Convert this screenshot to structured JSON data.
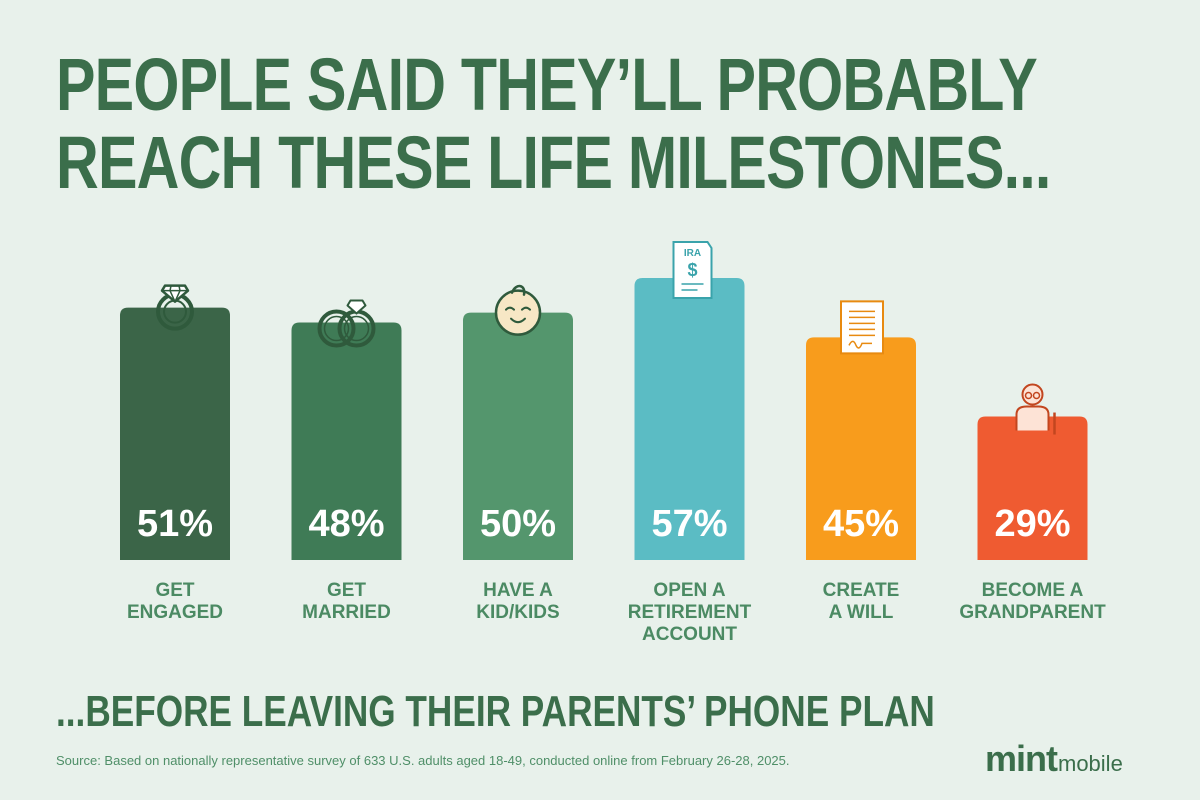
{
  "title": {
    "line1": "PEOPLE SAID THEY’LL PROBABLY",
    "line2": "REACH THESE LIFE MILESTONES..."
  },
  "footer_title": "...BEFORE LEAVING THEIR PARENTS’ PHONE PLAN",
  "source": "Source: Based on nationally representative survey of 633 U.S. adults aged 18-49, conducted online from February 26-28, 2025.",
  "logo": {
    "mint": "mint",
    "mobile": "mobile"
  },
  "chart_data": {
    "type": "bar",
    "categories": [
      [
        "GET",
        "ENGAGED"
      ],
      [
        "GET",
        "MARRIED"
      ],
      [
        "HAVE A",
        "KID/KIDS"
      ],
      [
        "OPEN A",
        "RETIREMENT",
        "ACCOUNT"
      ],
      [
        "CREATE",
        "A WILL"
      ],
      [
        "BECOME A",
        "GRANDPARENT"
      ]
    ],
    "values": [
      51,
      48,
      50,
      57,
      45,
      29
    ],
    "value_labels": [
      "51%",
      "48%",
      "50%",
      "57%",
      "45%",
      "29%"
    ],
    "colors": [
      "#3b6548",
      "#3f7b56",
      "#54966d",
      "#5bbcc4",
      "#f89c1c",
      "#ef5b31"
    ],
    "icons": [
      "diamond-ring-icon",
      "wedding-rings-icon",
      "baby-face-icon",
      "ira-document-icon",
      "will-document-icon",
      "grandparent-icon"
    ],
    "title": "PEOPLE SAID THEY’LL PROBABLY REACH THESE LIFE MILESTONES...",
    "xlabel": "",
    "ylabel": "",
    "ylim": [
      0,
      57
    ],
    "grid": false,
    "legend": "none"
  }
}
